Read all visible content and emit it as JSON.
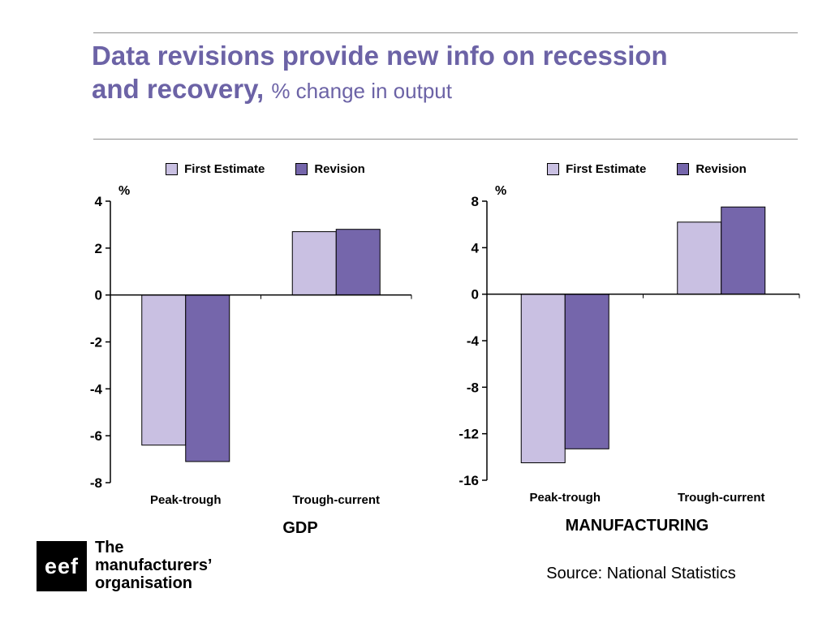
{
  "slide_title": {
    "line1": "Data revisions provide new info on recession",
    "line2_bold": "and recovery,",
    "line2_rest": "% change in output"
  },
  "chart_data": [
    {
      "type": "bar",
      "title": "GDP",
      "unit_label": "%",
      "categories": [
        "Peak-trough",
        "Trough-current"
      ],
      "series": [
        {
          "name": "First Estimate",
          "color": "#c9c0e2",
          "values": [
            -6.4,
            2.7
          ]
        },
        {
          "name": "Revision",
          "color": "#7566ab",
          "values": [
            -7.1,
            2.8
          ]
        }
      ],
      "ylim": [
        -8,
        4
      ],
      "yticks": [
        4,
        2,
        0,
        -2,
        -4,
        -6,
        -8
      ],
      "legend_position": "top",
      "grid": false
    },
    {
      "type": "bar",
      "title": "MANUFACTURING",
      "unit_label": "%",
      "categories": [
        "Peak-trough",
        "Trough-current"
      ],
      "series": [
        {
          "name": "First Estimate",
          "color": "#c9c0e2",
          "values": [
            -14.5,
            6.2
          ]
        },
        {
          "name": "Revision",
          "color": "#7566ab",
          "values": [
            -13.3,
            7.5
          ]
        }
      ],
      "ylim": [
        -16,
        8
      ],
      "yticks": [
        8,
        4,
        0,
        -4,
        -8,
        -12,
        -16
      ],
      "legend_position": "top",
      "grid": false
    }
  ],
  "footer": {
    "source": "Source: National Statistics",
    "logo_text": "eef",
    "logo_caption": [
      "The",
      "manufacturers’",
      "organisation"
    ]
  },
  "colors": {
    "title_accent": "#6c63a6",
    "rule": "#8f8f8f",
    "first_estimate": "#c9c0e2",
    "revision": "#7566ab"
  }
}
